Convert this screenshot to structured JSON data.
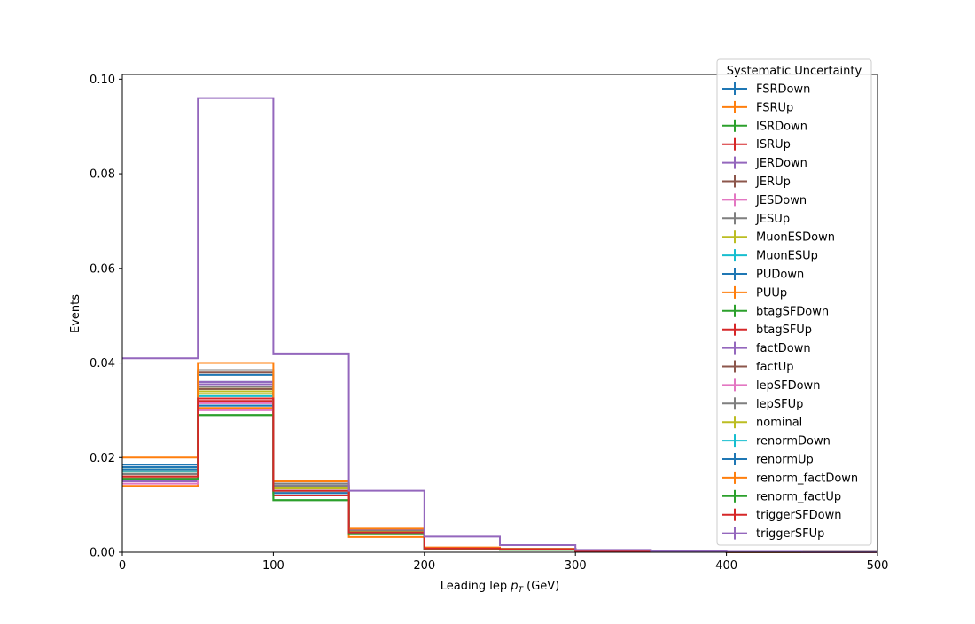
{
  "chart_data": {
    "type": "step",
    "xlabel_main": "Leading lep ",
    "xlabel_var": "p",
    "xlabel_sub": "T",
    "xlabel_unit": " (GeV)",
    "ylabel": "Events",
    "xlim": [
      0,
      500
    ],
    "ylim": [
      0,
      0.101
    ],
    "x_ticks": [
      0,
      100,
      200,
      300,
      400,
      500
    ],
    "x_tick_labels": [
      "0",
      "100",
      "200",
      "300",
      "400",
      "500"
    ],
    "y_ticks": [
      0,
      0.02,
      0.04,
      0.06,
      0.08,
      0.1
    ],
    "y_tick_labels": [
      "0.00",
      "0.02",
      "0.04",
      "0.06",
      "0.08",
      "0.10"
    ],
    "bin_edges": [
      0,
      50,
      100,
      150,
      200,
      250,
      300,
      350,
      400,
      450,
      500
    ],
    "grid": false,
    "legend": {
      "title": "Systematic Uncertainty",
      "placement": "upper-right"
    },
    "series": [
      {
        "name": "FSRDown",
        "color": "#1f77b4",
        "values": [
          0.0185,
          0.0375,
          0.014,
          0.0045,
          0.0009,
          0.0007,
          0.0002,
          0.0001,
          5e-05,
          2e-05
        ]
      },
      {
        "name": "FSRUp",
        "color": "#ff7f0e",
        "values": [
          0.014,
          0.0305,
          0.013,
          0.0032,
          0.0008,
          0.0006,
          0.0002,
          0.0001,
          5e-05,
          2e-05
        ]
      },
      {
        "name": "ISRDown",
        "color": "#2ca02c",
        "values": [
          0.0165,
          0.0345,
          0.0125,
          0.0042,
          0.0008,
          0.0006,
          0.0002,
          0.0001,
          5e-05,
          2e-05
        ]
      },
      {
        "name": "ISRUp",
        "color": "#d62728",
        "values": [
          0.016,
          0.034,
          0.012,
          0.004,
          0.0008,
          0.0006,
          0.0002,
          0.0001,
          5e-05,
          2e-05
        ]
      },
      {
        "name": "JERDown",
        "color": "#9467bd",
        "values": [
          0.0165,
          0.0355,
          0.014,
          0.0045,
          0.0009,
          0.0007,
          0.0002,
          0.0001,
          5e-05,
          2e-05
        ]
      },
      {
        "name": "JERUp",
        "color": "#8c564b",
        "values": [
          0.017,
          0.038,
          0.0145,
          0.0047,
          0.0009,
          0.0007,
          0.0002,
          0.0001,
          5e-05,
          2e-05
        ]
      },
      {
        "name": "JESDown",
        "color": "#e377c2",
        "values": [
          0.015,
          0.0315,
          0.013,
          0.004,
          0.0008,
          0.0006,
          0.0002,
          0.0001,
          5e-05,
          2e-05
        ]
      },
      {
        "name": "JESUp",
        "color": "#7f7f7f",
        "values": [
          0.0155,
          0.0385,
          0.0145,
          0.0048,
          0.0009,
          0.0007,
          0.0002,
          0.0001,
          5e-05,
          2e-05
        ]
      },
      {
        "name": "MuonESDown",
        "color": "#bcbd22",
        "values": [
          0.016,
          0.0335,
          0.0135,
          0.0043,
          0.0008,
          0.0006,
          0.0002,
          0.0001,
          5e-05,
          2e-05
        ]
      },
      {
        "name": "MuonESUp",
        "color": "#17becf",
        "values": [
          0.0175,
          0.031,
          0.013,
          0.0041,
          0.0008,
          0.0006,
          0.0002,
          0.0001,
          5e-05,
          2e-05
        ]
      },
      {
        "name": "PUDown",
        "color": "#1f77b4",
        "values": [
          0.018,
          0.036,
          0.0135,
          0.0044,
          0.0008,
          0.0006,
          0.0002,
          0.0001,
          5e-05,
          2e-05
        ]
      },
      {
        "name": "PUUp",
        "color": "#ff7f0e",
        "values": [
          0.017,
          0.035,
          0.013,
          0.0042,
          0.0008,
          0.0006,
          0.0002,
          0.0001,
          5e-05,
          2e-05
        ]
      },
      {
        "name": "btagSFDown",
        "color": "#2ca02c",
        "values": [
          0.0175,
          0.029,
          0.011,
          0.004,
          0.0008,
          0.0006,
          0.0002,
          0.0001,
          5e-05,
          2e-05
        ]
      },
      {
        "name": "btagSFUp",
        "color": "#d62728",
        "values": [
          0.0155,
          0.032,
          0.0135,
          0.0043,
          0.0008,
          0.0006,
          0.0002,
          0.0001,
          5e-05,
          2e-05
        ]
      },
      {
        "name": "factDown",
        "color": "#9467bd",
        "values": [
          0.015,
          0.036,
          0.014,
          0.0046,
          0.0009,
          0.0007,
          0.0002,
          0.0001,
          5e-05,
          2e-05
        ]
      },
      {
        "name": "factUp",
        "color": "#8c564b",
        "values": [
          0.016,
          0.0345,
          0.0135,
          0.0044,
          0.0008,
          0.0006,
          0.0002,
          0.0001,
          5e-05,
          2e-05
        ]
      },
      {
        "name": "lepSFDown",
        "color": "#e377c2",
        "values": [
          0.0145,
          0.03,
          0.0125,
          0.004,
          0.0008,
          0.0006,
          0.0002,
          0.0001,
          5e-05,
          2e-05
        ]
      },
      {
        "name": "lepSFUp",
        "color": "#7f7f7f",
        "values": [
          0.0165,
          0.035,
          0.014,
          0.0045,
          0.0009,
          0.0007,
          0.0002,
          0.0001,
          5e-05,
          2e-05
        ]
      },
      {
        "name": "nominal",
        "color": "#bcbd22",
        "values": [
          0.016,
          0.034,
          0.0135,
          0.0043,
          0.0008,
          0.0006,
          0.0002,
          0.0001,
          5e-05,
          2e-05
        ]
      },
      {
        "name": "renormDown",
        "color": "#17becf",
        "values": [
          0.017,
          0.033,
          0.013,
          0.0042,
          0.0008,
          0.0006,
          0.0002,
          0.0001,
          5e-05,
          2e-05
        ]
      },
      {
        "name": "renormUp",
        "color": "#1f77b4",
        "values": [
          0.0175,
          0.031,
          0.0125,
          0.0041,
          0.0008,
          0.0006,
          0.0002,
          0.0001,
          5e-05,
          2e-05
        ]
      },
      {
        "name": "renorm_factDown",
        "color": "#ff7f0e",
        "values": [
          0.02,
          0.04,
          0.015,
          0.005,
          0.001,
          0.0007,
          0.0002,
          0.0001,
          5e-05,
          2e-05
        ]
      },
      {
        "name": "renorm_factUp",
        "color": "#2ca02c",
        "values": [
          0.0155,
          0.029,
          0.011,
          0.0038,
          0.0007,
          0.0005,
          0.0002,
          0.0001,
          5e-05,
          2e-05
        ]
      },
      {
        "name": "triggerSFDown",
        "color": "#d62728",
        "values": [
          0.016,
          0.0325,
          0.013,
          0.0042,
          0.0008,
          0.0006,
          0.0002,
          0.0001,
          5e-05,
          2e-05
        ]
      },
      {
        "name": "triggerSFUp",
        "color": "#9467bd",
        "values": [
          0.041,
          0.096,
          0.042,
          0.013,
          0.0033,
          0.0015,
          0.0005,
          0.0002,
          0.0001,
          5e-05
        ]
      }
    ]
  }
}
